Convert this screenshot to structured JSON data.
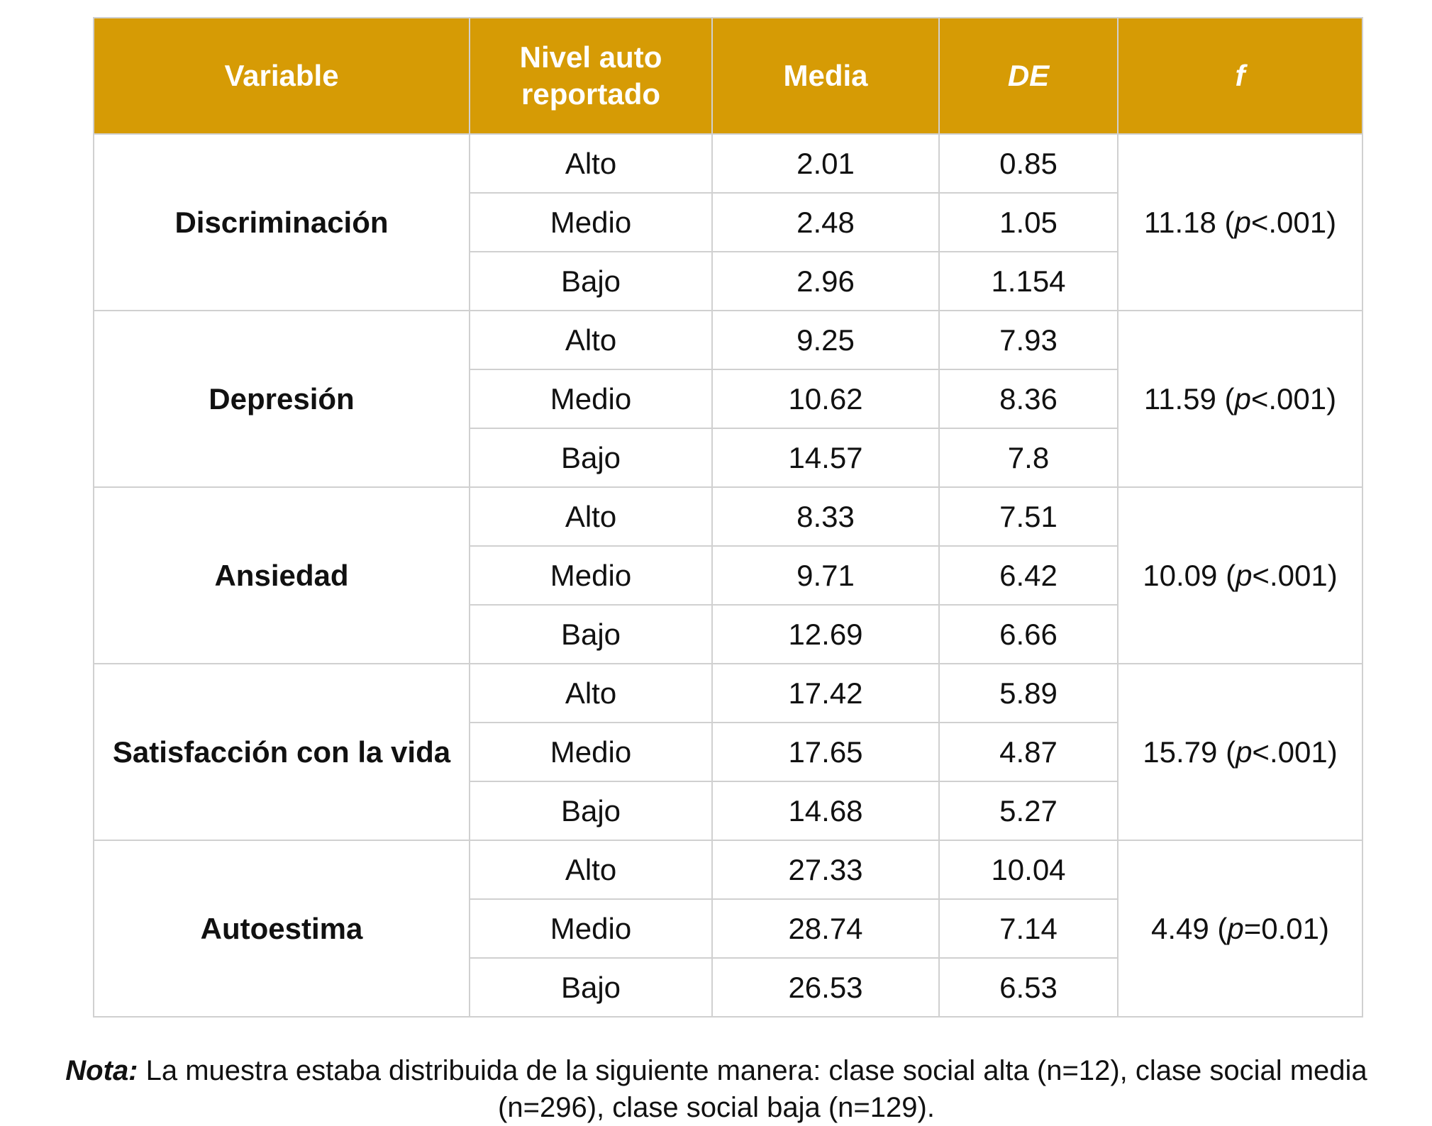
{
  "table": {
    "headers": [
      "Variable",
      "Nivel auto reportado",
      "Media",
      "DE",
      "f"
    ],
    "groups": [
      {
        "variable": "Discriminación",
        "rows": [
          {
            "nivel": "Alto",
            "media": "2.01",
            "de": "0.85"
          },
          {
            "nivel": "Medio",
            "media": "2.48",
            "de": "1.05"
          },
          {
            "nivel": "Bajo",
            "media": "2.96",
            "de": "1.154"
          }
        ],
        "f_value": "11.18 (",
        "f_p": "p",
        "f_rest": "<.001)"
      },
      {
        "variable": "Depresión",
        "rows": [
          {
            "nivel": "Alto",
            "media": "9.25",
            "de": "7.93"
          },
          {
            "nivel": "Medio",
            "media": "10.62",
            "de": "8.36"
          },
          {
            "nivel": "Bajo",
            "media": "14.57",
            "de": "7.8"
          }
        ],
        "f_value": "11.59 (",
        "f_p": "p",
        "f_rest": "<.001)"
      },
      {
        "variable": "Ansiedad",
        "rows": [
          {
            "nivel": "Alto",
            "media": "8.33",
            "de": "7.51"
          },
          {
            "nivel": "Medio",
            "media": "9.71",
            "de": "6.42"
          },
          {
            "nivel": "Bajo",
            "media": "12.69",
            "de": "6.66"
          }
        ],
        "f_value": "10.09 (",
        "f_p": "p",
        "f_rest": "<.001)"
      },
      {
        "variable": "Satisfacción con la vida",
        "rows": [
          {
            "nivel": "Alto",
            "media": "17.42",
            "de": "5.89"
          },
          {
            "nivel": "Medio",
            "media": "17.65",
            "de": "4.87"
          },
          {
            "nivel": "Bajo",
            "media": "14.68",
            "de": "5.27"
          }
        ],
        "f_value": "15.79 (",
        "f_p": "p",
        "f_rest": "<.001)"
      },
      {
        "variable": "Autoestima",
        "rows": [
          {
            "nivel": "Alto",
            "media": "27.33",
            "de": "10.04"
          },
          {
            "nivel": "Medio",
            "media": "28.74",
            "de": "7.14"
          },
          {
            "nivel": "Bajo",
            "media": "26.53",
            "de": "6.53"
          }
        ],
        "f_value": "4.49 (",
        "f_p": "p",
        "f_rest": "=0.01)"
      }
    ]
  },
  "note": {
    "label": "Nota:",
    "text": " La muestra estaba distribuida de la siguiente manera: clase social alta (n=12), clase social media (n=296), clase social baja (n=129)."
  },
  "colors": {
    "header_bg": "#d69b05",
    "header_text": "#ffffff",
    "border": "#d0d0d0"
  }
}
